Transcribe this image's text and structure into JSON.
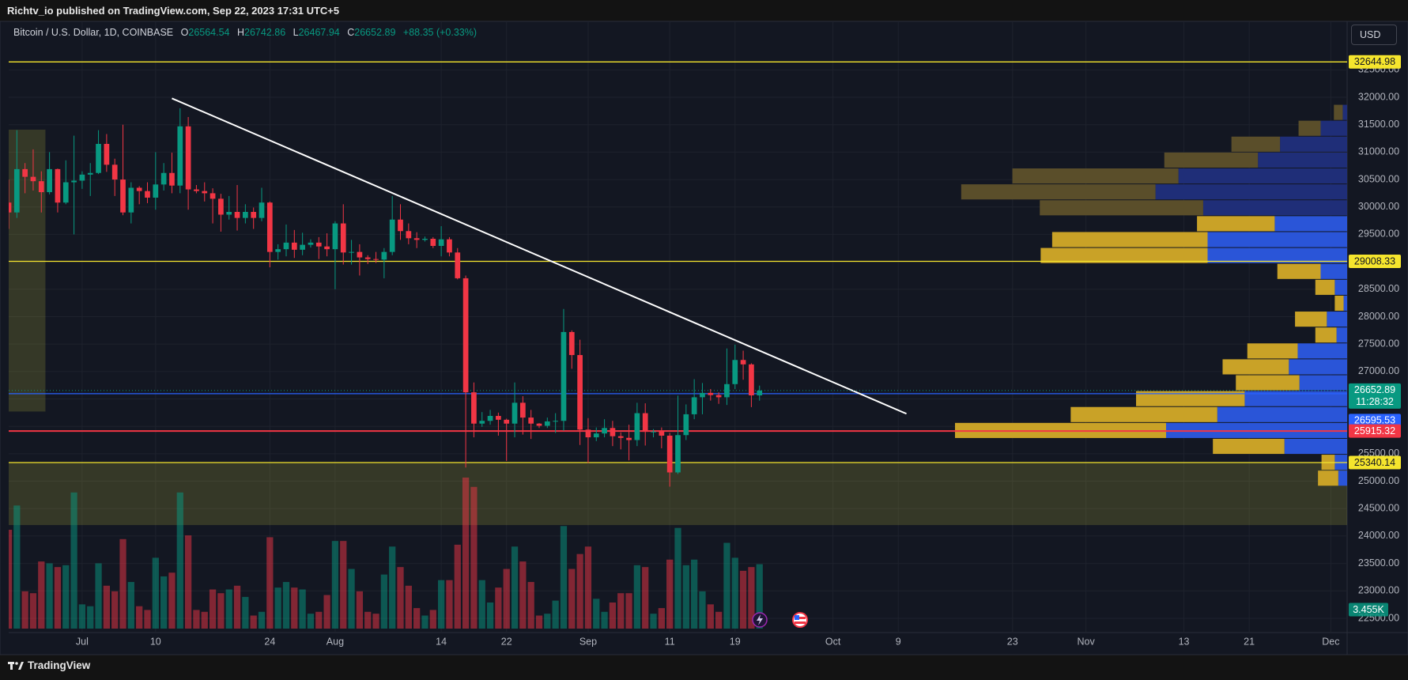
{
  "page": {
    "publisher": "Richtv_io published on TradingView.com, Sep 22, 2023 17:31 UTC+5",
    "footer": "TradingView",
    "currency_button": "USD"
  },
  "chart_data": {
    "type": "candlestick",
    "title": "Bitcoin / U.S. Dollar, 1D, COINBASE",
    "legend_labels": [
      "O",
      "H",
      "L",
      "C"
    ],
    "change": "+88.35 (+0.33%)",
    "countdown": "11:28:32",
    "volume_label": "3.455K",
    "up_color": "#089981",
    "down_color": "#f23645",
    "grid": true,
    "xlim": [
      "06-22",
      "12-03"
    ],
    "xticks": [
      {
        "value": "07-01",
        "label": "Jul"
      },
      {
        "value": "07-10",
        "label": "10"
      },
      {
        "value": "07-24",
        "label": "24"
      },
      {
        "value": "08-01",
        "label": "Aug"
      },
      {
        "value": "08-14",
        "label": "14"
      },
      {
        "value": "08-22",
        "label": "22"
      },
      {
        "value": "09-01",
        "label": "Sep"
      },
      {
        "value": "09-11",
        "label": "11"
      },
      {
        "value": "09-19",
        "label": "19"
      },
      {
        "value": "10-01",
        "label": "Oct"
      },
      {
        "value": "10-09",
        "label": "9"
      },
      {
        "value": "10-23",
        "label": "23"
      },
      {
        "value": "11-01",
        "label": "Nov"
      },
      {
        "value": "11-13",
        "label": "13"
      },
      {
        "value": "11-21",
        "label": "21"
      },
      {
        "value": "12-01",
        "label": "Dec"
      }
    ],
    "ylim": [
      22240,
      33370
    ],
    "yticks": [
      {
        "value": 22500,
        "label": "22500.00"
      },
      {
        "value": 23000,
        "label": "23000.00"
      },
      {
        "value": 23500,
        "label": "23500.00"
      },
      {
        "value": 24000,
        "label": "24000.00"
      },
      {
        "value": 24500,
        "label": "24500.00"
      },
      {
        "value": 25000,
        "label": "25000.00"
      },
      {
        "value": 25500,
        "label": "25500.00"
      },
      {
        "value": 26000,
        "label": "26000.00"
      },
      {
        "value": 26500,
        "label": "26500.00"
      },
      {
        "value": 27000,
        "label": "27000.00"
      },
      {
        "value": 27500,
        "label": "27500.00"
      },
      {
        "value": 28000,
        "label": "28000.00"
      },
      {
        "value": 28500,
        "label": "28500.00"
      },
      {
        "value": 29000,
        "label": "29000.00"
      },
      {
        "value": 29500,
        "label": "29500.00"
      },
      {
        "value": 30000,
        "label": "30000.00"
      },
      {
        "value": 30500,
        "label": "30500.00"
      },
      {
        "value": 31000,
        "label": "31000.00"
      },
      {
        "value": 31500,
        "label": "31500.00"
      },
      {
        "value": 32000,
        "label": "32000.00"
      },
      {
        "value": 32500,
        "label": "32500.00"
      }
    ],
    "x": [
      "06-22",
      "06-23",
      "06-24",
      "06-25",
      "06-26",
      "06-27",
      "06-28",
      "06-29",
      "06-30",
      "07-01",
      "07-02",
      "07-03",
      "07-04",
      "07-05",
      "07-06",
      "07-07",
      "07-08",
      "07-09",
      "07-10",
      "07-11",
      "07-12",
      "07-13",
      "07-14",
      "07-15",
      "07-16",
      "07-17",
      "07-18",
      "07-19",
      "07-20",
      "07-21",
      "07-22",
      "07-23",
      "07-24",
      "07-25",
      "07-26",
      "07-27",
      "07-28",
      "07-29",
      "07-30",
      "07-31",
      "08-01",
      "08-02",
      "08-03",
      "08-04",
      "08-05",
      "08-06",
      "08-07",
      "08-08",
      "08-09",
      "08-10",
      "08-11",
      "08-12",
      "08-13",
      "08-14",
      "08-15",
      "08-16",
      "08-17",
      "08-18",
      "08-19",
      "08-20",
      "08-21",
      "08-22",
      "08-23",
      "08-24",
      "08-25",
      "08-26",
      "08-27",
      "08-28",
      "08-29",
      "08-30",
      "08-31",
      "09-01",
      "09-02",
      "09-03",
      "09-04",
      "09-05",
      "09-06",
      "09-07",
      "09-08",
      "09-09",
      "09-10",
      "09-11",
      "09-12",
      "09-13",
      "09-14",
      "09-15",
      "09-16",
      "09-17",
      "09-18",
      "09-19",
      "09-20",
      "09-21",
      "09-22"
    ],
    "open": [
      30080,
      29900,
      30690,
      30550,
      30470,
      30270,
      30690,
      30080,
      30450,
      30480,
      30590,
      30620,
      31150,
      30770,
      30500,
      29900,
      30350,
      30290,
      30170,
      30410,
      30620,
      30390,
      31470,
      30320,
      30290,
      30250,
      30150,
      29860,
      29910,
      29800,
      29910,
      29800,
      30080,
      29180,
      29230,
      29350,
      29220,
      29310,
      29350,
      29280,
      29230,
      29700,
      29170,
      29180,
      29080,
      29050,
      29040,
      29180,
      29770,
      29560,
      29430,
      29400,
      29420,
      29290,
      29410,
      29170,
      28700,
      26620,
      26050,
      26100,
      26190,
      26120,
      26050,
      26430,
      26160,
      26050,
      26010,
      26090,
      26100,
      27720,
      27300,
      25940,
      25800,
      25870,
      25970,
      25820,
      25790,
      25750,
      26240,
      25900,
      25905,
      25830,
      25160,
      25840,
      26220,
      26530,
      26610,
      26570,
      26530,
      26770,
      27210,
      27130,
      26564.54
    ],
    "high": [
      30500,
      31400,
      30800,
      31050,
      30650,
      31000,
      30700,
      30850,
      31300,
      30650,
      30800,
      31400,
      31330,
      30880,
      31500,
      30450,
      30380,
      30450,
      31000,
      30800,
      30990,
      31800,
      31640,
      30400,
      30450,
      30340,
      30240,
      30200,
      30400,
      30050,
      29990,
      30350,
      30100,
      29320,
      29680,
      29580,
      29530,
      29410,
      29450,
      29520,
      29740,
      30050,
      29400,
      29320,
      29120,
      29180,
      29250,
      30200,
      30050,
      29700,
      29540,
      29460,
      29450,
      29650,
      29450,
      29250,
      28750,
      26800,
      26260,
      26300,
      26250,
      26140,
      26800,
      26550,
      26300,
      26060,
      26160,
      26240,
      28140,
      27750,
      27580,
      26150,
      25980,
      26130,
      26100,
      25890,
      26030,
      26430,
      26420,
      25950,
      25980,
      25880,
      26560,
      26400,
      26860,
      26790,
      26680,
      26620,
      27420,
      27490,
      27380,
      27150,
      26742.86
    ],
    "low": [
      29600,
      29800,
      30250,
      30300,
      29900,
      30230,
      29900,
      30050,
      29500,
      30330,
      30200,
      30600,
      30640,
      30200,
      29850,
      29700,
      30050,
      30070,
      29950,
      30300,
      30250,
      30250,
      29950,
      30250,
      30100,
      29700,
      29550,
      29770,
      29570,
      29700,
      29600,
      29740,
      28900,
      29040,
      29100,
      29070,
      29120,
      29260,
      29050,
      29100,
      28500,
      28950,
      28950,
      28750,
      28960,
      28980,
      28700,
      29120,
      29400,
      29320,
      29250,
      29370,
      29250,
      29100,
      29100,
      28680,
      25250,
      25800,
      25990,
      26030,
      25830,
      25370,
      25800,
      25850,
      25770,
      25970,
      25970,
      25880,
      25920,
      27050,
      25660,
      25330,
      25730,
      25800,
      25640,
      25580,
      25380,
      25640,
      25650,
      25800,
      25600,
      24900,
      25130,
      25750,
      26130,
      26220,
      26470,
      26410,
      26390,
      26680,
      26850,
      26350,
      26467.94
    ],
    "close": [
      29900,
      30690,
      30550,
      30470,
      30270,
      30690,
      30080,
      30450,
      30480,
      30590,
      30620,
      31150,
      30770,
      30500,
      29900,
      30350,
      30290,
      30170,
      30410,
      30620,
      30390,
      31470,
      30320,
      30290,
      30250,
      30150,
      29860,
      29910,
      29800,
      29910,
      29800,
      30080,
      29180,
      29230,
      29350,
      29220,
      29310,
      29350,
      29280,
      29230,
      29700,
      29170,
      29180,
      29080,
      29050,
      29040,
      29180,
      29770,
      29560,
      29430,
      29400,
      29420,
      29290,
      29410,
      29170,
      28700,
      26620,
      26050,
      26100,
      26190,
      26120,
      26050,
      26430,
      26160,
      26050,
      26010,
      26090,
      26100,
      27720,
      27300,
      25940,
      25800,
      25870,
      25970,
      25820,
      25790,
      25750,
      26240,
      25900,
      25905,
      25830,
      25160,
      25840,
      26220,
      26530,
      26610,
      26570,
      26530,
      26770,
      27210,
      27130,
      26564.54,
      26652.89
    ],
    "volume": [
      5300,
      6600,
      2000,
      1900,
      3600,
      3500,
      3300,
      3400,
      7300,
      1300,
      1200,
      3500,
      2300,
      2000,
      4800,
      2500,
      1200,
      1000,
      3800,
      2800,
      3000,
      7300,
      5000,
      1000,
      900,
      2100,
      1900,
      2100,
      2300,
      1700,
      700,
      900,
      4900,
      2200,
      2500,
      2200,
      2100,
      800,
      900,
      1800,
      4700,
      4700,
      3200,
      2000,
      900,
      800,
      2900,
      4400,
      3300,
      2300,
      1100,
      700,
      1000,
      2600,
      2600,
      4500,
      8100,
      7600,
      2600,
      1400,
      2200,
      3200,
      4400,
      3600,
      2500,
      700,
      800,
      1500,
      5500,
      3200,
      4000,
      4400,
      1600,
      900,
      1400,
      1900,
      1900,
      3400,
      3300,
      800,
      1100,
      3700,
      5400,
      3400,
      3700,
      2000,
      1300,
      900,
      4600,
      3800,
      3100,
      3300,
      3455
    ],
    "volume_lim": [
      0,
      12000
    ],
    "levels": [
      {
        "value": 32644.98,
        "color": "#f5e52d",
        "text_color": "#131722",
        "style": "solid"
      },
      {
        "value": 29008.33,
        "color": "#f5e52d",
        "text_color": "#131722",
        "style": "solid"
      },
      {
        "value": 26595.53,
        "color": "#2962ff",
        "text_color": "#ffffff",
        "style": "solid"
      },
      {
        "value": 25915.32,
        "color": "#f23645",
        "text_color": "#ffffff",
        "style": "solid"
      },
      {
        "value": 25340.14,
        "color": "#f5e52d",
        "text_color": "#131722",
        "style": "solid"
      }
    ],
    "zones": [
      {
        "x": [
          "06-22",
          "06-26"
        ],
        "y": [
          26270,
          31410
        ],
        "color": "rgba(190,190,60,0.2)"
      },
      {
        "x": [
          "06-22",
          "12-03"
        ],
        "y": [
          24200,
          25340.14
        ],
        "color": "rgba(190,190,60,0.2)"
      }
    ],
    "trendline": {
      "x": [
        "07-12",
        "10-10"
      ],
      "y": [
        31980,
        26230
      ],
      "color": "#ffffff"
    },
    "volume_profile": {
      "bins": [
        24910,
        25200,
        25490,
        25780,
        26070,
        26360,
        26650,
        26940,
        27230,
        27520,
        27810,
        28100,
        28390,
        28680,
        28970,
        29260,
        29550,
        29840,
        30130,
        30420,
        30710,
        31000,
        31290,
        31580,
        31870
      ],
      "up": [
        23,
        15,
        81,
        239,
        166,
        123,
        72,
        75,
        57,
        24,
        36,
        10,
        22,
        49,
        189,
        176,
        88,
        185,
        220,
        188,
        106,
        55,
        25,
        10
      ],
      "down": [
        10,
        14,
        71,
        205,
        147,
        116,
        54,
        66,
        56,
        12,
        23,
        4,
        14,
        30,
        158,
        158,
        82,
        163,
        217,
        191,
        101,
        76,
        30,
        5
      ],
      "value_area": [
        24910,
        29840
      ],
      "up_color": "#c9a227",
      "down_color": "#2a55d8",
      "up_dim_color": "#5a4e2a",
      "down_dim_color": "#1f2e78"
    }
  }
}
